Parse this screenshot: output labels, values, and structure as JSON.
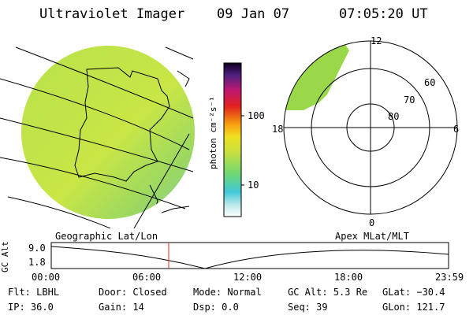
{
  "header": {
    "instrument": "Ultraviolet Imager",
    "date": "09 Jan 07",
    "time": "07:05:20 UT"
  },
  "colorbar": {
    "unit_label": "photon cm⁻²s⁻¹",
    "ticks": [
      "100",
      "10"
    ]
  },
  "polar_plot": {
    "labels_mlt": [
      "12",
      "18",
      "6",
      "0"
    ],
    "labels_mlat": [
      "60",
      "70",
      "80"
    ]
  },
  "timeline": {
    "left_caption": "Geographic Lat/Lon",
    "right_caption": "Apex MLat/MLT",
    "yaxis_label": "GC Alt",
    "yticks": [
      "9.0",
      "1.8"
    ],
    "xticks": [
      "00:00",
      "06:00",
      "12:00",
      "18:00",
      "23:59"
    ],
    "marker_time": "07:05:20"
  },
  "status": {
    "row1": [
      {
        "label": "Flt:",
        "value": "LBHL"
      },
      {
        "label": "Door:",
        "value": "Closed"
      },
      {
        "label": "Mode:",
        "value": "Normal"
      },
      {
        "label": "GC Alt:",
        "value": "5.3 Re"
      },
      {
        "label": "GLat:",
        "value": "−30.4"
      }
    ],
    "row2": [
      {
        "label": "IP:",
        "value": "36.0"
      },
      {
        "label": "Gain:",
        "value": "14"
      },
      {
        "label": "Dsp:",
        "value": "0.0"
      },
      {
        "label": "Seq:",
        "value": "39"
      },
      {
        "label": "GLon:",
        "value": "121.7"
      }
    ]
  },
  "colors": {
    "disk_main": "#b6e04a",
    "disk_dim": "#9ad85a",
    "marker": "#e0302a"
  }
}
